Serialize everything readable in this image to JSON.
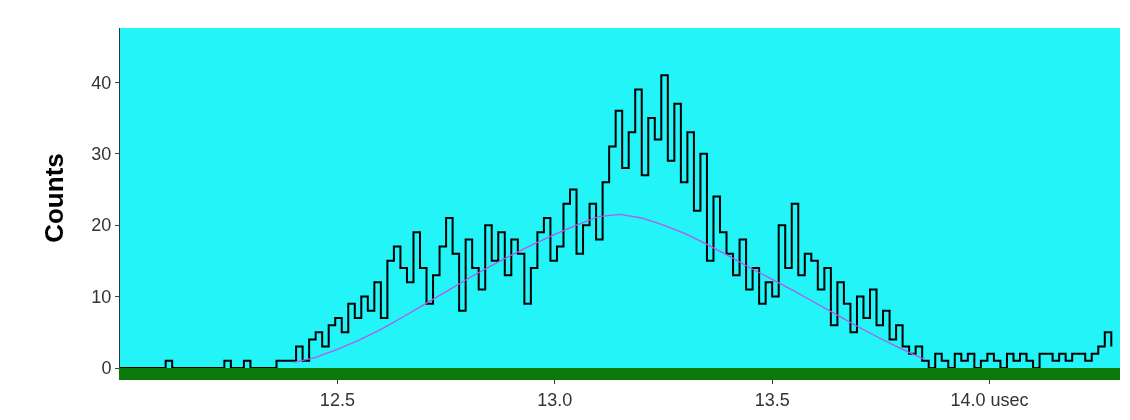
{
  "chart_data": {
    "type": "step",
    "ylabel": "Counts",
    "xlim": [
      12.0,
      14.3
    ],
    "xticks": [
      {
        "value": 12.5,
        "label": "12.5"
      },
      {
        "value": 13.0,
        "label": "13.0"
      },
      {
        "value": 13.5,
        "label": "13.5"
      },
      {
        "value": 14.0,
        "label": "14.0 usec"
      }
    ],
    "ylim": [
      0,
      47.6
    ],
    "yticks": [
      0,
      10,
      20,
      30,
      40
    ],
    "grid": false,
    "marker": "none",
    "line_style": "solid",
    "series": [
      {
        "color": "#000000",
        "x": [
          12.0,
          12.015,
          12.03,
          12.045,
          12.06,
          12.075,
          12.09,
          12.105,
          12.12,
          12.135,
          12.15,
          12.165,
          12.18,
          12.195,
          12.21,
          12.225,
          12.24,
          12.255,
          12.27,
          12.285,
          12.3,
          12.315,
          12.33,
          12.345,
          12.36,
          12.375,
          12.39,
          12.405,
          12.42,
          12.435,
          12.45,
          12.465,
          12.48,
          12.495,
          12.51,
          12.525,
          12.54,
          12.555,
          12.57,
          12.585,
          12.6,
          12.615,
          12.63,
          12.645,
          12.66,
          12.675,
          12.69,
          12.705,
          12.72,
          12.735,
          12.75,
          12.765,
          12.78,
          12.795,
          12.81,
          12.825,
          12.84,
          12.855,
          12.87,
          12.885,
          12.9,
          12.915,
          12.93,
          12.945,
          12.96,
          12.975,
          12.99,
          13.005,
          13.02,
          13.035,
          13.05,
          13.065,
          13.08,
          13.095,
          13.11,
          13.125,
          13.14,
          13.155,
          13.17,
          13.185,
          13.2,
          13.215,
          13.23,
          13.245,
          13.26,
          13.275,
          13.29,
          13.305,
          13.32,
          13.335,
          13.35,
          13.365,
          13.38,
          13.395,
          13.41,
          13.425,
          13.44,
          13.455,
          13.47,
          13.485,
          13.5,
          13.515,
          13.53,
          13.545,
          13.56,
          13.575,
          13.59,
          13.605,
          13.62,
          13.635,
          13.65,
          13.665,
          13.68,
          13.695,
          13.71,
          13.725,
          13.74,
          13.755,
          13.77,
          13.785,
          13.8,
          13.815,
          13.83,
          13.845,
          13.86,
          13.875,
          13.89,
          13.905,
          13.92,
          13.935,
          13.95,
          13.965,
          13.98,
          13.995,
          14.01,
          14.025,
          14.04,
          14.055,
          14.07,
          14.085,
          14.1,
          14.115,
          14.13,
          14.145,
          14.16,
          14.175,
          14.19,
          14.205,
          14.22,
          14.235,
          14.25,
          14.265,
          14.28
        ],
        "values": [
          0,
          0,
          0,
          0,
          0,
          0,
          0,
          1,
          0,
          0,
          0,
          0,
          0,
          0,
          0,
          0,
          1,
          0,
          0,
          1,
          0,
          0,
          0,
          0,
          1,
          1,
          1,
          3,
          1,
          4,
          5,
          3,
          6,
          7,
          5,
          9,
          7,
          10,
          8,
          12,
          7,
          15,
          17,
          14,
          12,
          19,
          14,
          9,
          13,
          17,
          21,
          16,
          8,
          18,
          14,
          11,
          20,
          15,
          19,
          13,
          18,
          16,
          9,
          14,
          19,
          21,
          15,
          17,
          23,
          25,
          16,
          20,
          23,
          18,
          26,
          31,
          36,
          28,
          33,
          39,
          27,
          35,
          32,
          41,
          29,
          37,
          26,
          33,
          22,
          30,
          15,
          24,
          19,
          16,
          13,
          18,
          11,
          14,
          9,
          12,
          10,
          20,
          14,
          23,
          13,
          16,
          15,
          11,
          14,
          6,
          12,
          9,
          5,
          10,
          7,
          11,
          6,
          8,
          4,
          6,
          3,
          2,
          3,
          1,
          0,
          2,
          1,
          0,
          2,
          1,
          2,
          0,
          1,
          2,
          1,
          0,
          2,
          1,
          2,
          1,
          0,
          2,
          2,
          1,
          2,
          1,
          2,
          2,
          1,
          2,
          3,
          5,
          3
        ]
      },
      {
        "type": "line",
        "color": "#b05ce8",
        "x": [
          12.4,
          12.45,
          12.5,
          12.55,
          12.6,
          12.65,
          12.7,
          12.75,
          12.8,
          12.85,
          12.9,
          12.95,
          13.0,
          13.05,
          13.1,
          13.15,
          13.2,
          13.25,
          13.3,
          13.35,
          13.4,
          13.45,
          13.5,
          13.55,
          13.6,
          13.65,
          13.7,
          13.75,
          13.8,
          13.85
        ],
        "values": [
          0.8,
          1.5,
          2.6,
          3.9,
          5.4,
          7.1,
          8.9,
          10.7,
          12.5,
          14.2,
          15.8,
          17.3,
          18.7,
          20.0,
          21.2,
          21.5,
          21.0,
          20.0,
          18.8,
          17.3,
          15.7,
          14.0,
          12.4,
          10.8,
          9.1,
          7.4,
          5.7,
          4.1,
          2.6,
          1.2
        ]
      }
    ]
  }
}
